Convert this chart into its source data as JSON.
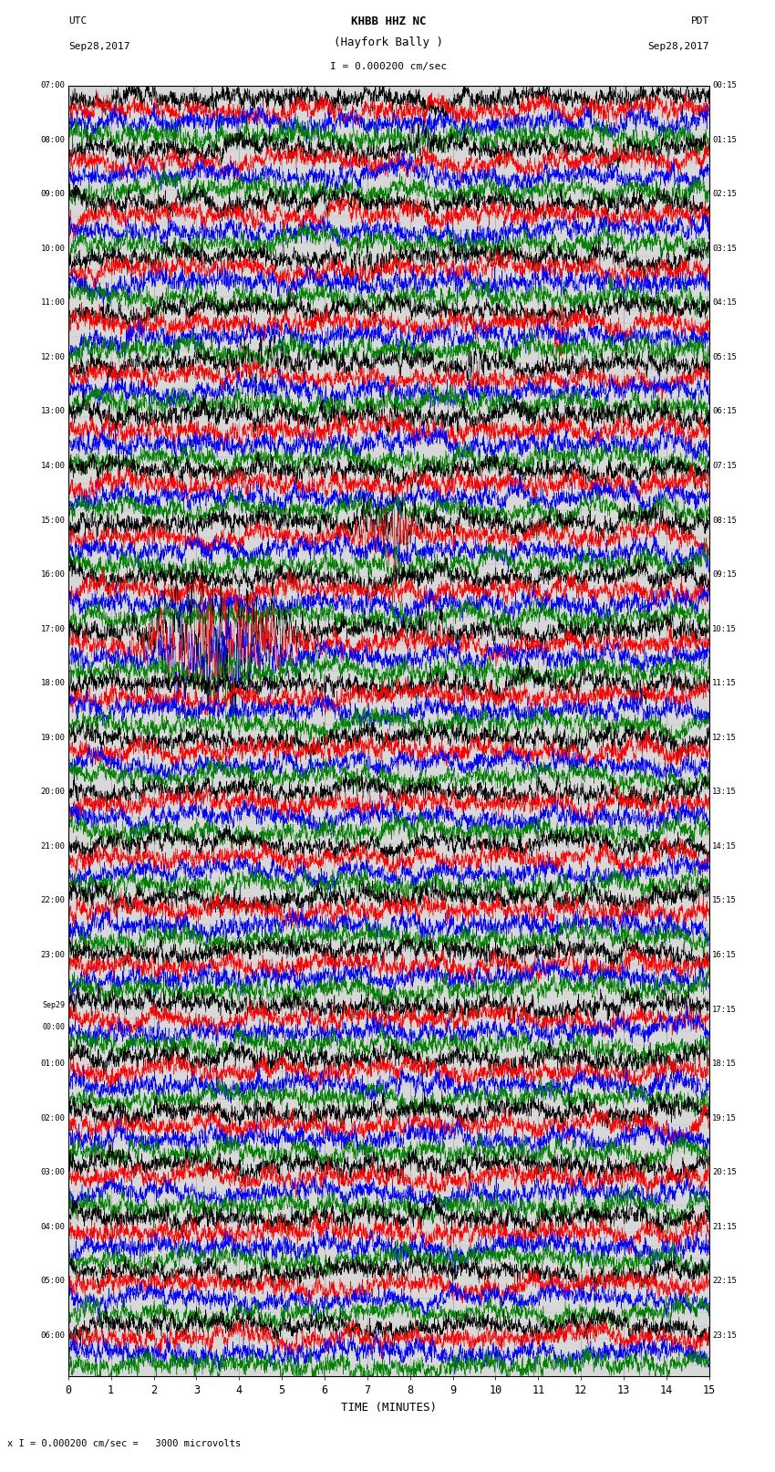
{
  "title_line1": "KHBB HHZ NC",
  "title_line2": "(Hayfork Bally )",
  "scale_text": "I = 0.000200 cm/sec",
  "left_header_line1": "UTC",
  "left_header_line2": "Sep28,2017",
  "right_header_line1": "PDT",
  "right_header_line2": "Sep28,2017",
  "bottom_note": "x I = 0.000200 cm/sec =   3000 microvolts",
  "xlabel": "TIME (MINUTES)",
  "xlim": [
    0,
    15
  ],
  "xticks": [
    0,
    1,
    2,
    3,
    4,
    5,
    6,
    7,
    8,
    9,
    10,
    11,
    12,
    13,
    14,
    15
  ],
  "background_color": "#ffffff",
  "plot_bg_color": "#d8d8d8",
  "grid_color": "#999999",
  "num_traces": 96,
  "trace_colors_pattern": [
    "black",
    "red",
    "blue",
    "green"
  ],
  "utc_labels": [
    "07:00",
    "",
    "",
    "",
    "08:00",
    "",
    "",
    "",
    "09:00",
    "",
    "",
    "",
    "10:00",
    "",
    "",
    "",
    "11:00",
    "",
    "",
    "",
    "12:00",
    "",
    "",
    "",
    "13:00",
    "",
    "",
    "",
    "14:00",
    "",
    "",
    "",
    "15:00",
    "",
    "",
    "",
    "16:00",
    "",
    "",
    "",
    "17:00",
    "",
    "",
    "",
    "18:00",
    "",
    "",
    "",
    "19:00",
    "",
    "",
    "",
    "20:00",
    "",
    "",
    "",
    "21:00",
    "",
    "",
    "",
    "22:00",
    "",
    "",
    "",
    "23:00",
    "",
    "",
    "",
    "Sep29",
    "00:00",
    "",
    "",
    "01:00",
    "",
    "",
    "",
    "02:00",
    "",
    "",
    "",
    "03:00",
    "",
    "",
    "",
    "04:00",
    "",
    "",
    "",
    "05:00",
    "",
    "",
    "",
    "06:00",
    "",
    "",
    ""
  ],
  "pdt_labels": [
    "00:15",
    "",
    "",
    "",
    "01:15",
    "",
    "",
    "",
    "02:15",
    "",
    "",
    "",
    "03:15",
    "",
    "",
    "",
    "04:15",
    "",
    "",
    "",
    "05:15",
    "",
    "",
    "",
    "06:15",
    "",
    "",
    "",
    "07:15",
    "",
    "",
    "",
    "08:15",
    "",
    "",
    "",
    "09:15",
    "",
    "",
    "",
    "10:15",
    "",
    "",
    "",
    "11:15",
    "",
    "",
    "",
    "12:15",
    "",
    "",
    "",
    "13:15",
    "",
    "",
    "",
    "14:15",
    "",
    "",
    "",
    "15:15",
    "",
    "",
    "",
    "16:15",
    "",
    "",
    "",
    "17:15",
    "",
    "",
    "",
    "18:15",
    "",
    "",
    "",
    "19:15",
    "",
    "",
    "",
    "20:15",
    "",
    "",
    "",
    "21:15",
    "",
    "",
    "",
    "22:15",
    "",
    "",
    "",
    "23:15",
    "",
    "",
    ""
  ]
}
